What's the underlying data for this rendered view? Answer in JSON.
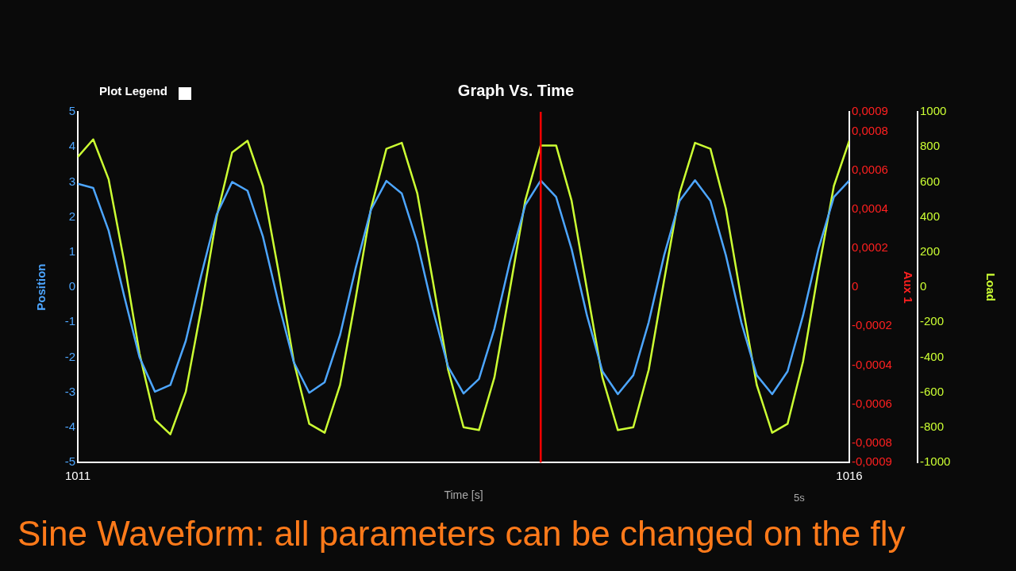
{
  "chart_data": {
    "type": "line",
    "title": "Graph Vs. Time",
    "xlabel": "Time [s]",
    "ylabel": "Position",
    "y2label": "Aux 1",
    "y3label": "Load",
    "x": [
      1011,
      1011.1,
      1011.2,
      1011.3,
      1011.4,
      1011.5,
      1011.6,
      1011.7,
      1011.8,
      1011.9,
      1012,
      1012.1,
      1012.2,
      1012.3,
      1012.4,
      1012.5,
      1012.6,
      1012.7,
      1012.8,
      1012.9,
      1013,
      1013.1,
      1013.2,
      1013.3,
      1013.4,
      1013.5,
      1013.6,
      1013.7,
      1013.8,
      1013.9,
      1014,
      1014.1,
      1014.2,
      1014.3,
      1014.4,
      1014.5,
      1014.6,
      1014.7,
      1014.8,
      1014.9,
      1015,
      1015.1,
      1015.2,
      1015.3,
      1015.4,
      1015.5,
      1015.6,
      1015.7,
      1015.8,
      1015.9,
      1016
    ],
    "series": [
      {
        "color": "#4da6ff",
        "values": [
          2.95,
          2.83,
          1.61,
          -0.24,
          -2.0,
          -2.98,
          -2.79,
          -1.53,
          0.34,
          2.07,
          3.0,
          2.75,
          1.44,
          -0.44,
          -2.14,
          -3.01,
          -2.71,
          -1.36,
          0.53,
          2.21,
          3.03,
          2.67,
          1.27,
          -0.62,
          -2.27,
          -3.03,
          -2.62,
          -1.18,
          0.72,
          2.34,
          3.04,
          2.57,
          1.09,
          -0.81,
          -2.4,
          -3.05,
          -2.51,
          -1.0,
          0.91,
          2.46,
          3.05,
          2.46,
          0.91,
          -1.0,
          -2.51,
          -3.05,
          -2.4,
          -0.81,
          1.09,
          2.57,
          3.04
        ]
      },
      {
        "color": "#ccff33",
        "axis": "y3",
        "values": [
          743,
          843,
          615,
          148,
          -378,
          -756,
          -839,
          -596,
          -122,
          401,
          768,
          835,
          577,
          94,
          -425,
          -779,
          -830,
          -557,
          -67,
          448,
          789,
          823,
          536,
          40,
          -471,
          -799,
          -815,
          -515,
          -14,
          494,
          808,
          808,
          494,
          -14,
          -515,
          -815,
          -799,
          -471,
          40,
          536,
          823,
          789,
          448,
          -67,
          -557,
          -830,
          -779,
          -425,
          94,
          577,
          835
        ]
      }
    ],
    "xlim": [
      1011,
      1016
    ],
    "xticks": [
      1011,
      1016
    ],
    "ylim": [
      -5,
      5
    ],
    "yticks": [
      -5,
      -4,
      -3,
      -2,
      -1,
      0,
      1,
      2,
      3,
      4,
      5
    ],
    "y2lim": [
      -0.0009,
      0.0009
    ],
    "y2ticks": [
      {
        "value": -0.0009,
        "label": "-0,0009"
      },
      {
        "value": -0.0008,
        "label": "-0,0008"
      },
      {
        "value": -0.0006,
        "label": "-0,0006"
      },
      {
        "value": -0.0004,
        "label": "-0,0004"
      },
      {
        "value": -0.0002,
        "label": "-0,0002"
      },
      {
        "value": 0,
        "label": "0"
      },
      {
        "value": 0.0002,
        "label": "0,0002"
      },
      {
        "value": 0.0004,
        "label": "0,0004"
      },
      {
        "value": 0.0006,
        "label": "0,0006"
      },
      {
        "value": 0.0008,
        "label": "0,0008"
      },
      {
        "value": 0.0009,
        "label": "0,0009"
      }
    ],
    "y3lim": [
      -1000,
      1000
    ],
    "y3ticks": [
      -1000,
      -800,
      -600,
      -400,
      -200,
      0,
      200,
      400,
      600,
      800,
      1000
    ],
    "ref_lines": [
      {
        "axis": "x",
        "value": 1014,
        "color": "#ff0000"
      }
    ],
    "annotations": [
      "Plot Legend",
      "5s",
      "Sine Waveform: all parameters can be changed on the fly"
    ],
    "marker": "none",
    "line_style": "solid",
    "grid": false,
    "legend": false
  }
}
